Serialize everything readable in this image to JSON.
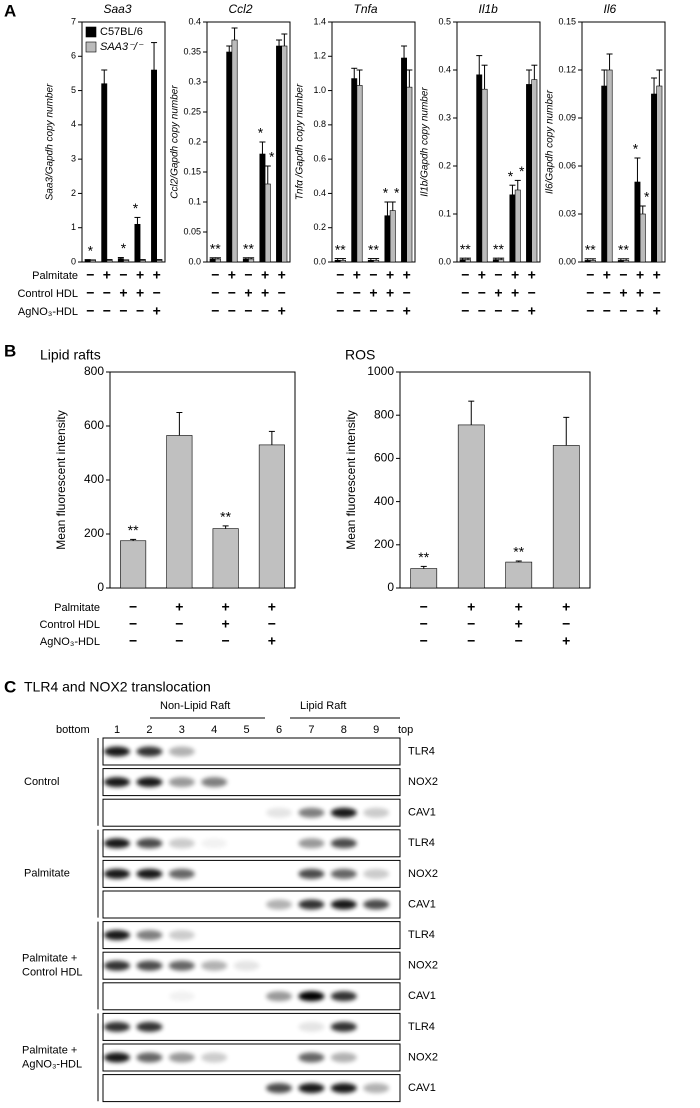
{
  "panel_labels": [
    "A",
    "B",
    "C"
  ],
  "treatments_A": [
    {
      "name": "Palmitate",
      "marks": [
        "−",
        "+",
        "−",
        "+",
        "+"
      ]
    },
    {
      "name": "Control HDL",
      "marks": [
        "−",
        "−",
        "+",
        "+",
        "−"
      ]
    },
    {
      "name": "AgNO₃-HDL",
      "marks": [
        "−",
        "−",
        "−",
        "−",
        "+"
      ]
    }
  ],
  "treatments_B": [
    {
      "name": "Palmitate",
      "marks": [
        "−",
        "+",
        "+",
        "+"
      ]
    },
    {
      "name": "Control HDL",
      "marks": [
        "−",
        "−",
        "+",
        "−"
      ]
    },
    {
      "name": "AgNO₃-HDL",
      "marks": [
        "−",
        "−",
        "−",
        "+"
      ]
    }
  ],
  "chart_data": [
    {
      "type": "bar",
      "title": "Saa3",
      "ylabel": "Saa3/Gapdh copy number",
      "legend": "upper left",
      "categories": [
        null,
        null,
        null,
        null,
        null
      ],
      "ylim": [
        0,
        7
      ],
      "yticks": [
        0,
        1,
        2,
        3,
        4,
        5,
        6,
        7
      ],
      "series": [
        {
          "name": "C57BL/6",
          "color": "#000000",
          "values": [
            0.05,
            5.2,
            0.1,
            1.1,
            5.6
          ],
          "errors": [
            0.02,
            0.4,
            0.03,
            0.2,
            0.8
          ]
        },
        {
          "name": "SAA3⁻/⁻",
          "color": "#bbbbbb",
          "values": [
            0.05,
            0.05,
            0.05,
            0.05,
            0.05
          ],
          "errors": [
            0.01,
            0.02,
            0.01,
            0.02,
            0.02
          ]
        }
      ],
      "annotations": [
        {
          "text": "*",
          "category": 0
        },
        {
          "text": "*",
          "category": 2
        },
        {
          "text": "*",
          "category": 3,
          "series": 0
        }
      ]
    },
    {
      "type": "bar",
      "title": "Ccl2",
      "ylabel": "Ccl2/Gapdh copy number",
      "categories": [
        null,
        null,
        null,
        null,
        null
      ],
      "ylim": [
        0,
        0.4
      ],
      "yticks": [
        {
          "value": 0,
          "label": "0.0"
        },
        0.05,
        0.1,
        0.15,
        0.2,
        0.25,
        0.3,
        0.35,
        0.4
      ],
      "series": [
        {
          "color": "#000000",
          "values": [
            0.005,
            0.35,
            0.005,
            0.18,
            0.36
          ],
          "errors": [
            0.002,
            0.01,
            0.002,
            0.02,
            0.01
          ]
        },
        {
          "color": "#bbbbbb",
          "values": [
            0.005,
            0.37,
            0.005,
            0.13,
            0.36
          ],
          "errors": [
            0.002,
            0.02,
            0.002,
            0.03,
            0.02
          ]
        }
      ],
      "annotations": [
        {
          "text": "**",
          "category": 0
        },
        {
          "text": "**",
          "category": 2
        },
        {
          "text": "*",
          "category": 3,
          "series": 0
        },
        {
          "text": "*",
          "category": 3,
          "series": 1
        }
      ]
    },
    {
      "type": "bar",
      "title": "Tnfa",
      "ylabel": "Tnfα /Gapdh copy number",
      "categories": [
        null,
        null,
        null,
        null,
        null
      ],
      "ylim": [
        0,
        1.4
      ],
      "yticks": [
        {
          "value": 0,
          "label": "0.0"
        },
        0.2,
        0.4,
        0.6,
        0.8,
        {
          "value": 1,
          "label": "1.0"
        },
        1.2,
        1.4
      ],
      "series": [
        {
          "color": "#000000",
          "values": [
            0.01,
            1.07,
            0.01,
            0.27,
            1.19
          ],
          "errors": [
            0.01,
            0.06,
            0.01,
            0.08,
            0.07
          ]
        },
        {
          "color": "#bbbbbb",
          "values": [
            0.01,
            1.03,
            0.01,
            0.3,
            1.02
          ],
          "errors": [
            0.01,
            0.09,
            0.01,
            0.05,
            0.1
          ]
        }
      ],
      "annotations": [
        {
          "text": "**",
          "category": 0
        },
        {
          "text": "**",
          "category": 2
        },
        {
          "text": "*",
          "category": 3,
          "series": 0
        },
        {
          "text": "*",
          "category": 3,
          "series": 1
        }
      ]
    },
    {
      "type": "bar",
      "title": "Il1b",
      "ylabel": "Il1b/Gapdh copy number",
      "categories": [
        null,
        null,
        null,
        null,
        null
      ],
      "ylim": [
        0,
        0.5
      ],
      "yticks": [
        {
          "value": 0,
          "label": "0.0"
        },
        0.1,
        0.2,
        0.3,
        0.4,
        0.5
      ],
      "series": [
        {
          "color": "#000000",
          "values": [
            0.005,
            0.39,
            0.005,
            0.14,
            0.37
          ],
          "errors": [
            0.003,
            0.04,
            0.003,
            0.02,
            0.03
          ]
        },
        {
          "color": "#bbbbbb",
          "values": [
            0.005,
            0.36,
            0.005,
            0.15,
            0.38
          ],
          "errors": [
            0.003,
            0.05,
            0.003,
            0.02,
            0.03
          ]
        }
      ],
      "annotations": [
        {
          "text": "**",
          "category": 0
        },
        {
          "text": "**",
          "category": 2
        },
        {
          "text": "*",
          "category": 3,
          "series": 0
        },
        {
          "text": "*",
          "category": 3,
          "series": 1
        }
      ]
    },
    {
      "type": "bar",
      "title": "Il6",
      "ylabel": "Il6/Gapdh copy number",
      "categories": [
        null,
        null,
        null,
        null,
        null
      ],
      "ylim": [
        0,
        0.15
      ],
      "yticks": [
        {
          "value": 0,
          "label": "0.00"
        },
        {
          "value": 0.03,
          "label": "0.03"
        },
        {
          "value": 0.06,
          "label": "0.06"
        },
        {
          "value": 0.09,
          "label": "0.09"
        },
        0.12,
        0.15
      ],
      "series": [
        {
          "color": "#000000",
          "values": [
            0.001,
            0.11,
            0.001,
            0.05,
            0.105
          ],
          "errors": [
            0.001,
            0.01,
            0.001,
            0.015,
            0.01
          ]
        },
        {
          "color": "#bbbbbb",
          "values": [
            0.001,
            0.12,
            0.001,
            0.03,
            0.11
          ],
          "errors": [
            0.001,
            0.01,
            0.001,
            0.005,
            0.01
          ]
        }
      ],
      "annotations": [
        {
          "text": "**",
          "category": 0
        },
        {
          "text": "**",
          "category": 2
        },
        {
          "text": "*",
          "category": 3,
          "series": 0
        },
        {
          "text": "*",
          "category": 3,
          "series": 1
        }
      ]
    },
    {
      "type": "bar",
      "title": "Lipid rafts",
      "ylabel": "Mean fluorescent intensity",
      "categories": [
        null,
        null,
        null,
        null
      ],
      "ylim": [
        0,
        800
      ],
      "yticks": [
        0,
        200,
        400,
        600,
        800
      ],
      "series": [
        {
          "color": "#c0c0c0",
          "values": [
            175,
            565,
            220,
            530
          ],
          "errors": [
            5,
            85,
            10,
            50
          ]
        }
      ],
      "annotations": [
        {
          "text": "**",
          "category": 0
        },
        {
          "text": "**",
          "category": 2
        }
      ]
    },
    {
      "type": "bar",
      "title": "ROS",
      "ylabel": "Mean fluorescent intensity",
      "categories": [
        null,
        null,
        null,
        null
      ],
      "ylim": [
        0,
        1000
      ],
      "yticks": [
        0,
        200,
        400,
        600,
        800,
        1000
      ],
      "series": [
        {
          "color": "#c0c0c0",
          "values": [
            90,
            755,
            120,
            660
          ],
          "errors": [
            10,
            110,
            5,
            130
          ]
        }
      ],
      "annotations": [
        {
          "text": "**",
          "category": 0
        },
        {
          "text": "**",
          "category": 2
        }
      ]
    }
  ],
  "blot": {
    "title": "TLR4 and NOX2 translocation",
    "regions": [
      "Non-Lipid Raft",
      "Lipid Raft"
    ],
    "bottom": "bottom",
    "top": "top",
    "lanes": [
      1,
      2,
      3,
      4,
      5,
      6,
      7,
      8,
      9
    ],
    "groups": [
      {
        "name": [
          "Control"
        ],
        "bands": [
          "TLR4",
          "NOX2",
          "CAV1"
        ]
      },
      {
        "name": [
          "Palmitate"
        ],
        "bands": [
          "TLR4",
          "NOX2",
          "CAV1"
        ]
      },
      {
        "name": [
          "Palmitate +",
          "Control HDL"
        ],
        "bands": [
          "TLR4",
          "NOX2",
          "CAV1"
        ]
      },
      {
        "name": [
          "Palmitate +",
          "AgNO₃-HDL"
        ],
        "bands": [
          "TLR4",
          "NOX2",
          "CAV1"
        ]
      }
    ]
  }
}
